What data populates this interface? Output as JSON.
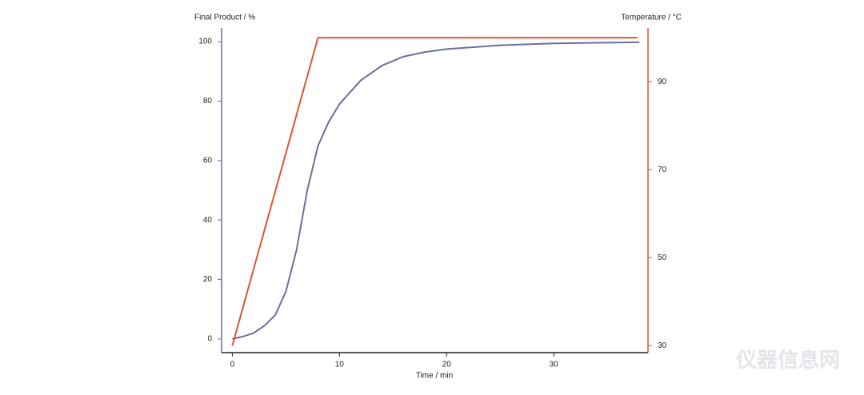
{
  "chart_data": {
    "type": "line",
    "x_label": "Time / min",
    "y_label": "Final Product / %",
    "y2_label": "Temperature / °C",
    "watermark": "仪器信息网",
    "xlim": [
      -1,
      38.8
    ],
    "xticks": [
      0,
      10,
      20,
      30
    ],
    "ylim": [
      -4.6,
      104.6
    ],
    "yticks": [
      0,
      20,
      40,
      60,
      80,
      100
    ],
    "y2lim": [
      28.4,
      102.2
    ],
    "y2ticks": [
      30,
      50,
      70,
      90
    ],
    "y_axis_color": "#6b6f9e",
    "y2_axis_color": "#e0532f",
    "series": [
      {
        "name": "Final Product",
        "color": "#6b6f9e",
        "x": [
          0,
          1,
          2,
          3,
          4,
          5,
          6,
          7,
          8,
          9,
          10,
          12,
          14,
          16,
          18,
          20,
          25,
          30,
          38
        ],
        "values": [
          0,
          0.8,
          2,
          4.5,
          8,
          16,
          30,
          50,
          65,
          73,
          79,
          87,
          92,
          95,
          96.5,
          97.5,
          98.8,
          99.4,
          99.8
        ]
      },
      {
        "name": "Temperature",
        "color": "#e0532f",
        "axis": "y2",
        "x": [
          0,
          8,
          37.8
        ],
        "values": [
          30,
          100,
          100
        ]
      }
    ]
  }
}
